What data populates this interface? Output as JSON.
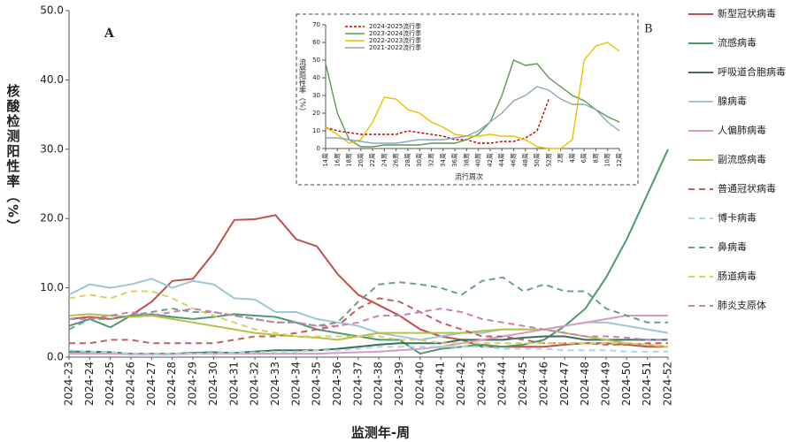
{
  "chart_data": [
    {
      "type": "line",
      "panel": "A",
      "x_label": "监测年-周",
      "y_label": "核酸检测阳性率（%）",
      "categories": [
        "2024-23",
        "2024-24",
        "2024-25",
        "2024-26",
        "2024-27",
        "2024-28",
        "2024-29",
        "2024-30",
        "2024-31",
        "2024-32",
        "2024-33",
        "2024-34",
        "2024-35",
        "2024-36",
        "2024-37",
        "2024-38",
        "2024-39",
        "2024-40",
        "2024-41",
        "2024-42",
        "2024-43",
        "2024-44",
        "2024-45",
        "2024-46",
        "2024-47",
        "2024-48",
        "2024-49",
        "2024-50",
        "2024-51",
        "2024-52"
      ],
      "ylim": [
        0,
        50
      ],
      "yticks": [
        {
          "value": 0,
          "label": "0.0"
        },
        {
          "value": 10,
          "label": "10.0"
        },
        {
          "value": 20,
          "label": "20.0"
        },
        {
          "value": 30,
          "label": "30.0"
        },
        {
          "value": 40,
          "label": "40.0"
        },
        {
          "value": 50,
          "label": "50.0"
        }
      ],
      "grid": false,
      "legend": "right",
      "series": [
        {
          "name": "新型冠状病毒",
          "color": "#c0504d",
          "style": "solid",
          "values": [
            5.5,
            5.8,
            5.5,
            6,
            8,
            11,
            11.3,
            15,
            19.8,
            19.9,
            20.5,
            17,
            16,
            12,
            9,
            7.5,
            6,
            4,
            3,
            2.5,
            1.5,
            1.5,
            1.5,
            1.5,
            1.8,
            2,
            2,
            1.8,
            1.5,
            1.5
          ]
        },
        {
          "name": "流感病毒",
          "color": "#4e9a6a",
          "style": "solid",
          "values": [
            4.5,
            5.5,
            4.3,
            6,
            6.2,
            5.8,
            5.5,
            5.8,
            6.2,
            6,
            5.8,
            5,
            4,
            3.5,
            3,
            2.5,
            2.5,
            0.5,
            1.2,
            1.5,
            1.8,
            1.5,
            1.8,
            2.5,
            4.5,
            7,
            11.5,
            17,
            23.5,
            30
          ]
        },
        {
          "name": "呼吸道合胞病毒",
          "color": "#3d6b5c",
          "style": "solid",
          "values": [
            0.8,
            0.8,
            0.7,
            0.5,
            0.5,
            0.5,
            0.6,
            0.7,
            0.6,
            0.8,
            1,
            1,
            1,
            1.2,
            1.5,
            1.8,
            2,
            2,
            2,
            2.5,
            2.5,
            2.5,
            2.8,
            3,
            3,
            2.5,
            2.5,
            2.5,
            2.5,
            2.5
          ]
        },
        {
          "name": "腺病毒",
          "color": "#9cc6d6",
          "style": "solid",
          "values": [
            9,
            10.5,
            10,
            10.5,
            11.3,
            10,
            11,
            10.5,
            8.5,
            8.3,
            6.5,
            6.5,
            5.5,
            5,
            4.5,
            3.5,
            3,
            2.5,
            3,
            3.5,
            3.5,
            4,
            4,
            4,
            4.5,
            5,
            5,
            4.5,
            4,
            3.5
          ]
        },
        {
          "name": "人偏肺病毒",
          "color": "#d89ac0",
          "style": "solid",
          "values": [
            0.5,
            0.5,
            0.5,
            0.4,
            0.4,
            0.4,
            0.5,
            0.5,
            0.5,
            0.5,
            0.5,
            0.5,
            0.5,
            0.6,
            0.7,
            0.8,
            1,
            1.2,
            1.5,
            2,
            2.5,
            3,
            3.5,
            4,
            4.5,
            5,
            5.5,
            6,
            6,
            6
          ]
        },
        {
          "name": "副流感病毒",
          "color": "#b5c04a",
          "style": "solid",
          "values": [
            6,
            6.2,
            6,
            5.8,
            6,
            5.5,
            5,
            4.5,
            4,
            3.5,
            3.2,
            3,
            2.8,
            2.5,
            3,
            3.5,
            3.5,
            3.5,
            3.5,
            3.5,
            3.8,
            4,
            4,
            4,
            3.5,
            3,
            2.5,
            2,
            1.8,
            1.5
          ]
        },
        {
          "name": "普通冠状病毒",
          "color": "#c0605e",
          "style": "dashed",
          "values": [
            2,
            2,
            2.5,
            2.5,
            2,
            2,
            2,
            2,
            2.5,
            3,
            3,
            3.5,
            4,
            4.5,
            7,
            8.5,
            8,
            6.5,
            5,
            4,
            3,
            3,
            2.5,
            2,
            2,
            2,
            1.8,
            1.8,
            2,
            2
          ]
        },
        {
          "name": "博卡病毒",
          "color": "#a8d8e0",
          "style": "dashed",
          "values": [
            1,
            0.8,
            0.7,
            0.5,
            0.5,
            0.5,
            0.5,
            0.6,
            0.6,
            0.7,
            0.8,
            0.8,
            1,
            1,
            1.2,
            1.5,
            1.5,
            1.5,
            1.5,
            1.5,
            1.5,
            1.2,
            1.2,
            1.2,
            1,
            1,
            1,
            0.8,
            0.8,
            0.8
          ]
        },
        {
          "name": "鼻病毒",
          "color": "#6aa088",
          "style": "dashed",
          "values": [
            4,
            5.5,
            5.5,
            6,
            6.5,
            7,
            6.5,
            6.5,
            6,
            5.5,
            5,
            5,
            4.5,
            5,
            8,
            10.5,
            10.8,
            10.5,
            10,
            9,
            11,
            11.5,
            9.5,
            10.5,
            9.5,
            9.5,
            7,
            6,
            5,
            5
          ]
        },
        {
          "name": "肠道病毒",
          "color": "#d8d060",
          "style": "dashed",
          "values": [
            8.5,
            9,
            8.5,
            9.5,
            9.5,
            8.5,
            7,
            6,
            5,
            4,
            3.5,
            3,
            3,
            3,
            3,
            3,
            2.5,
            2.5,
            2,
            2,
            2,
            2,
            2,
            2,
            2,
            2,
            2,
            2,
            1.8,
            1.5
          ]
        },
        {
          "name": "肺炎支原体",
          "color": "#c880b8",
          "style": "dashed",
          "values": [
            5.5,
            5.5,
            6,
            6.5,
            6,
            6.5,
            7,
            6.5,
            6,
            5.5,
            5,
            5,
            4.5,
            4.5,
            5,
            6,
            6,
            6.5,
            7,
            6.5,
            5.5,
            5,
            4.5,
            4,
            3.5,
            3,
            3,
            2.8,
            2.5,
            2.5
          ]
        }
      ]
    },
    {
      "type": "line",
      "panel": "B",
      "x_label": "流行周次",
      "y_label": "流感阳性率（%）",
      "categories": [
        "14周",
        "16周",
        "18周",
        "20周",
        "22周",
        "24周",
        "26周",
        "28周",
        "30周",
        "32周",
        "34周",
        "36周",
        "38周",
        "40周",
        "42周",
        "44周",
        "46周",
        "48周",
        "50周",
        "52周",
        "2周",
        "4周",
        "6周",
        "8周",
        "10周",
        "12周"
      ],
      "ylim": [
        0,
        70
      ],
      "yticks": [
        0,
        10,
        20,
        30,
        40,
        50,
        60,
        70
      ],
      "grid": false,
      "legend": "top-left",
      "series": [
        {
          "name": "2024-2025流行季",
          "color": "#c00000",
          "style": "dotted",
          "values": [
            12,
            10,
            9,
            8,
            8,
            8,
            8,
            10,
            9,
            8,
            7,
            5,
            5,
            3,
            3,
            4,
            4,
            6,
            10,
            28,
            null,
            null,
            null,
            null,
            null,
            null
          ]
        },
        {
          "name": "2023-2024流行季",
          "color": "#5a9a50",
          "style": "solid",
          "values": [
            48,
            20,
            5,
            1,
            1,
            2,
            2,
            2,
            2,
            3,
            3,
            3,
            5,
            8,
            15,
            30,
            50,
            47,
            48,
            40,
            35,
            30,
            27,
            22,
            18,
            15
          ]
        },
        {
          "name": "2022-2023流行季",
          "color": "#e8c000",
          "style": "solid",
          "values": [
            12,
            8,
            3,
            5,
            15,
            29,
            28,
            22,
            20,
            15,
            12,
            8,
            7,
            7,
            8,
            7,
            7,
            5,
            1,
            0,
            0,
            5,
            50,
            58,
            60,
            55
          ]
        },
        {
          "name": "2021-2022流行季",
          "color": "#8aa8b8",
          "style": "solid",
          "values": [
            6,
            6,
            5,
            4,
            3,
            3,
            3,
            4,
            5,
            5,
            5,
            6,
            7,
            10,
            15,
            20,
            27,
            30,
            35,
            33,
            28,
            25,
            25,
            22,
            15,
            10
          ]
        }
      ]
    }
  ]
}
